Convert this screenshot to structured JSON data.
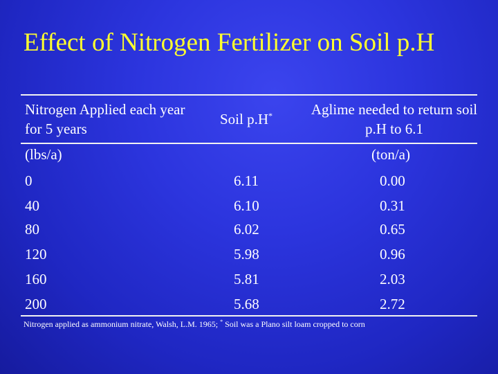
{
  "slide": {
    "title": "Effect of Nitrogen Fertilizer on Soil p.H"
  },
  "table": {
    "headers": {
      "nitrogen": "Nitrogen Applied each year for 5 years",
      "soil_ph": "Soil p.H",
      "soil_ph_mark": "*",
      "aglime": "Aglime needed to return soil p.H to 6.1"
    },
    "units": {
      "nitrogen": "(lbs/a)",
      "aglime": "(ton/a)"
    },
    "rows": [
      {
        "nitrogen": "0",
        "soil_ph": "6.11",
        "aglime": "0.00"
      },
      {
        "nitrogen": "40",
        "soil_ph": "6.10",
        "aglime": "0.31"
      },
      {
        "nitrogen": "80",
        "soil_ph": "6.02",
        "aglime": "0.65"
      },
      {
        "nitrogen": "120",
        "soil_ph": "5.98",
        "aglime": "0.96"
      },
      {
        "nitrogen": "160",
        "soil_ph": "5.81",
        "aglime": "2.03"
      },
      {
        "nitrogen": "200",
        "soil_ph": "5.68",
        "aglime": "2.72"
      }
    ]
  },
  "footnote": {
    "text_a": "Nitrogen applied as ammonium nitrate, Walsh, L.M. 1965; ",
    "mark": "*",
    "text_b": " Soil was a Plano silt loam cropped to corn"
  },
  "colors": {
    "background": "#2c35de",
    "title": "#ffff2e",
    "text": "#ffffff",
    "rule": "#f2f2f2"
  }
}
